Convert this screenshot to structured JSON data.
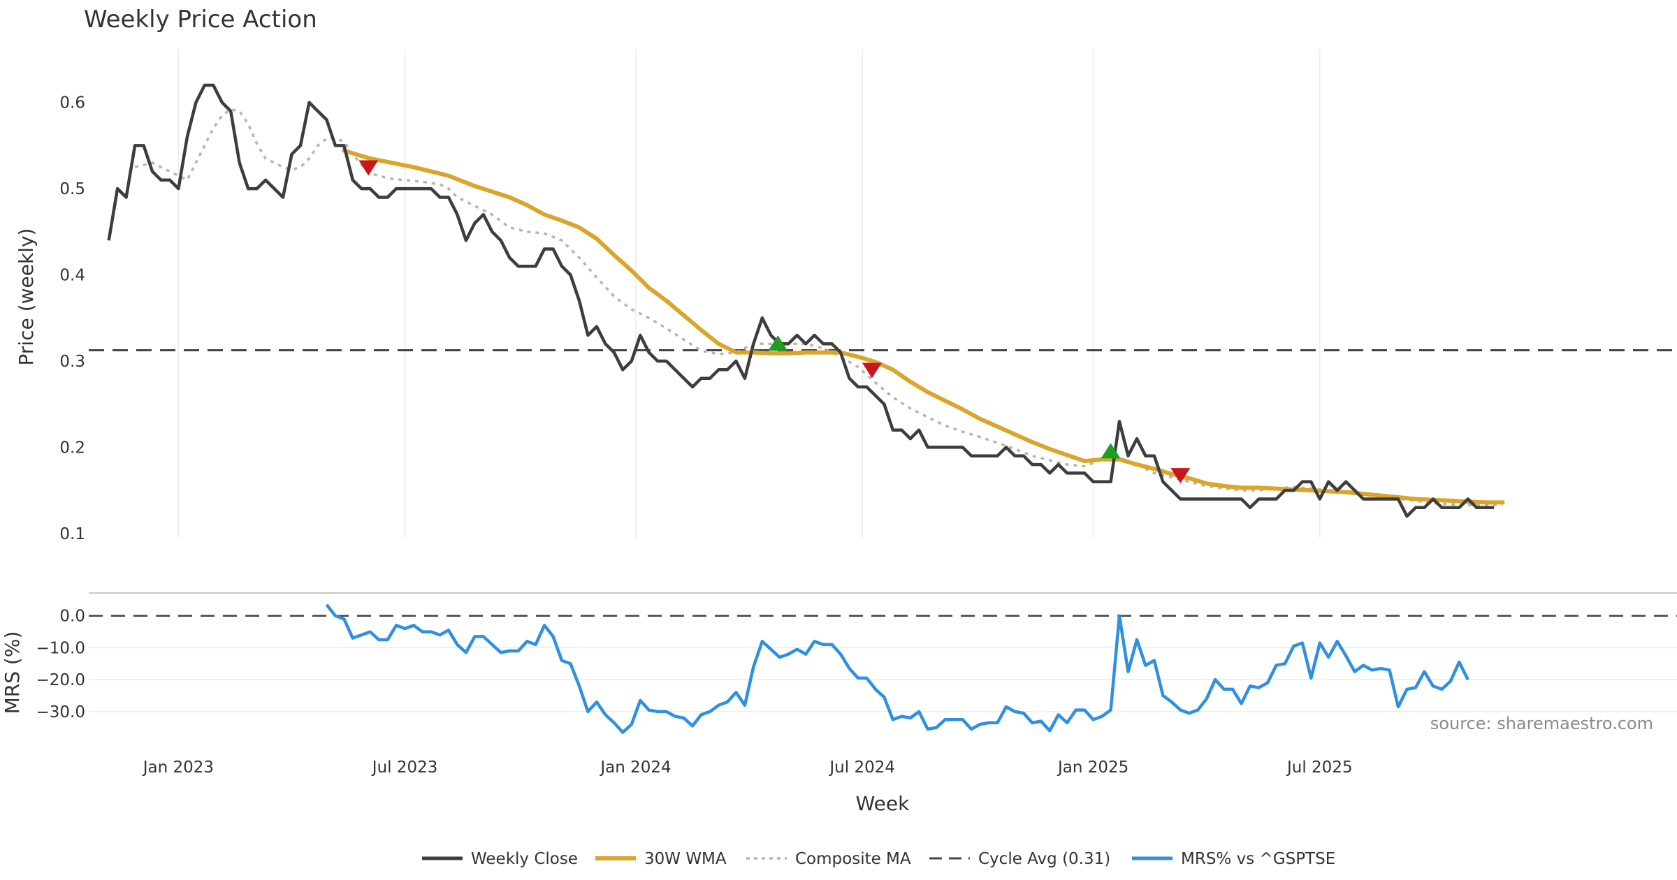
{
  "chart_data": {
    "type": "line",
    "title": "Weekly Price Action",
    "xlabel": "Week",
    "source": "source: sharemaestro.com",
    "colors": {
      "close": "#3d3d3d",
      "wma": "#d9a62b",
      "composite": "#b5b5b5",
      "cycle": "#444444",
      "mrs": "#2f8fe0",
      "sell": "#c8161d",
      "buy": "#1e9e1e"
    },
    "x_axis": {
      "range": [
        -2.3,
        180
      ],
      "ticks": [
        {
          "pos": 8,
          "label": "Jan 2023"
        },
        {
          "pos": 34,
          "label": "Jul 2023"
        },
        {
          "pos": 60.5,
          "label": "Jan 2024"
        },
        {
          "pos": 86.5,
          "label": "Jul 2024"
        },
        {
          "pos": 113,
          "label": "Jan 2025"
        },
        {
          "pos": 139,
          "label": "Jul 2025"
        }
      ]
    },
    "price_panel": {
      "ylabel": "Price (weekly)",
      "ylim": [
        0.095,
        0.65
      ],
      "yticks": [
        {
          "value": 0.6,
          "label": "0.6"
        },
        {
          "value": 0.5,
          "label": "0.5"
        },
        {
          "value": 0.4,
          "label": "0.4"
        },
        {
          "value": 0.3,
          "label": "0.3"
        },
        {
          "value": 0.2,
          "label": "0.2"
        },
        {
          "value": 0.1,
          "label": "0.1"
        }
      ],
      "cycle_avg": 0.3125,
      "weekly_close": [
        0.44,
        0.5,
        0.49,
        0.55,
        0.55,
        0.52,
        0.51,
        0.51,
        0.5,
        0.56,
        0.6,
        0.62,
        0.62,
        0.6,
        0.59,
        0.53,
        0.5,
        0.5,
        0.51,
        0.5,
        0.49,
        0.54,
        0.55,
        0.6,
        0.59,
        0.58,
        0.55,
        0.55,
        0.51,
        0.5,
        0.5,
        0.49,
        0.49,
        0.5,
        0.5,
        0.5,
        0.5,
        0.5,
        0.49,
        0.49,
        0.47,
        0.44,
        0.46,
        0.47,
        0.45,
        0.44,
        0.42,
        0.41,
        0.41,
        0.41,
        0.43,
        0.43,
        0.41,
        0.4,
        0.37,
        0.33,
        0.34,
        0.32,
        0.31,
        0.29,
        0.3,
        0.33,
        0.31,
        0.3,
        0.3,
        0.29,
        0.28,
        0.27,
        0.28,
        0.28,
        0.29,
        0.29,
        0.3,
        0.28,
        0.32,
        0.35,
        0.33,
        0.32,
        0.32,
        0.33,
        0.32,
        0.33,
        0.32,
        0.32,
        0.31,
        0.28,
        0.27,
        0.27,
        0.26,
        0.25,
        0.22,
        0.22,
        0.21,
        0.22,
        0.2,
        0.2,
        0.2,
        0.2,
        0.2,
        0.19,
        0.19,
        0.19,
        0.19,
        0.2,
        0.19,
        0.19,
        0.18,
        0.18,
        0.17,
        0.18,
        0.17,
        0.17,
        0.17,
        0.16,
        0.16,
        0.16,
        0.23,
        0.19,
        0.21,
        0.19,
        0.19,
        0.16,
        0.15,
        0.14,
        0.14,
        0.14,
        0.14,
        0.14,
        0.14,
        0.14,
        0.14,
        0.13,
        0.14,
        0.14,
        0.14,
        0.15,
        0.15,
        0.16,
        0.16,
        0.14,
        0.16,
        0.15,
        0.16,
        0.15,
        0.14,
        0.14,
        0.14,
        0.14,
        0.14,
        0.12,
        0.13,
        0.13,
        0.14,
        0.13,
        0.13,
        0.13,
        0.14,
        0.13,
        0.13,
        0.13
      ],
      "wma_30w": {
        "x": [
          27,
          30,
          35,
          39,
          42,
          46,
          48,
          50,
          52,
          54,
          56,
          58,
          60,
          62,
          64,
          66,
          68,
          70,
          72,
          74,
          76,
          78,
          80,
          82,
          84,
          86,
          88,
          90,
          92,
          94,
          96,
          98,
          100,
          102,
          104,
          106,
          108,
          110,
          112,
          114,
          116,
          118,
          120,
          122,
          124,
          126,
          128,
          130,
          132,
          134,
          136,
          138,
          140,
          142,
          144,
          146,
          148,
          150,
          152,
          154,
          156,
          158,
          160
        ],
        "y": [
          0.544,
          0.535,
          0.525,
          0.515,
          0.503,
          0.49,
          0.481,
          0.47,
          0.463,
          0.455,
          0.442,
          0.423,
          0.405,
          0.385,
          0.37,
          0.353,
          0.336,
          0.32,
          0.31,
          0.31,
          0.309,
          0.309,
          0.31,
          0.31,
          0.31,
          0.305,
          0.299,
          0.29,
          0.276,
          0.264,
          0.254,
          0.244,
          0.233,
          0.224,
          0.215,
          0.206,
          0.198,
          0.191,
          0.184,
          0.186,
          0.186,
          0.18,
          0.175,
          0.169,
          0.164,
          0.158,
          0.155,
          0.153,
          0.153,
          0.152,
          0.151,
          0.15,
          0.149,
          0.148,
          0.146,
          0.144,
          0.142,
          0.14,
          0.139,
          0.138,
          0.137,
          0.136,
          0.136
        ]
      },
      "composite_ma": {
        "x": [
          3,
          5,
          7,
          9,
          11,
          12,
          13,
          14,
          15,
          16,
          17,
          18,
          20,
          21,
          22,
          23,
          24,
          25,
          26,
          27,
          28,
          29,
          30,
          32,
          34,
          36,
          38,
          39,
          40,
          42,
          44,
          46,
          48,
          50,
          52,
          54,
          56,
          58,
          60,
          62,
          64,
          66,
          68,
          70,
          72,
          74,
          76,
          78,
          80,
          82,
          84,
          86,
          88,
          90,
          92,
          94,
          96,
          98,
          100,
          102,
          104,
          106,
          108,
          110,
          112,
          114,
          116,
          118,
          120,
          122,
          124,
          126,
          128,
          130,
          132,
          134,
          136,
          138,
          140,
          142,
          144,
          146,
          148,
          150,
          152,
          154,
          156,
          158,
          160
        ],
        "y": [
          0.525,
          0.53,
          0.52,
          0.51,
          0.55,
          0.57,
          0.585,
          0.592,
          0.59,
          0.575,
          0.552,
          0.535,
          0.525,
          0.522,
          0.525,
          0.535,
          0.55,
          0.558,
          0.558,
          0.555,
          0.54,
          0.528,
          0.518,
          0.512,
          0.51,
          0.508,
          0.505,
          0.5,
          0.49,
          0.48,
          0.47,
          0.455,
          0.45,
          0.448,
          0.44,
          0.42,
          0.397,
          0.375,
          0.36,
          0.35,
          0.338,
          0.325,
          0.312,
          0.308,
          0.31,
          0.32,
          0.32,
          0.32,
          0.32,
          0.315,
          0.305,
          0.293,
          0.275,
          0.258,
          0.245,
          0.235,
          0.225,
          0.218,
          0.212,
          0.205,
          0.198,
          0.19,
          0.185,
          0.18,
          0.178,
          0.186,
          0.188,
          0.18,
          0.17,
          0.165,
          0.16,
          0.155,
          0.152,
          0.15,
          0.15,
          0.152,
          0.154,
          0.152,
          0.15,
          0.148,
          0.145,
          0.142,
          0.14,
          0.138,
          0.135,
          0.134,
          0.133,
          0.133,
          0.133
        ]
      },
      "sell_signals": [
        {
          "x": 29.8,
          "y": 0.524
        },
        {
          "x": 87.6,
          "y": 0.289
        },
        {
          "x": 123,
          "y": 0.167
        }
      ],
      "buy_signals": [
        {
          "x": 76.8,
          "y": 0.321
        },
        {
          "x": 115,
          "y": 0.196
        }
      ]
    },
    "mrs_panel": {
      "ylabel": "MRS (%)",
      "ylim": [
        -39,
        6.5
      ],
      "yticks": [
        {
          "value": 0,
          "label": "0.0"
        },
        {
          "value": -10,
          "label": "−10.0"
        },
        {
          "value": -20,
          "label": "−20.0"
        },
        {
          "value": -30,
          "label": "−30.0"
        }
      ],
      "x_start": 25,
      "values": [
        3.5,
        0,
        -1,
        -7,
        -6,
        -5,
        -7.5,
        -7.5,
        -3,
        -4,
        -3,
        -5,
        -5,
        -6,
        -4.5,
        -9,
        -11.5,
        -6.5,
        -6.5,
        -9,
        -11.5,
        -11,
        -11,
        -8,
        -9,
        -3,
        -6.5,
        -14,
        -15,
        -22,
        -30,
        -27,
        -31,
        -33.5,
        -36.5,
        -34,
        -26.5,
        -29.5,
        -30,
        -30,
        -31.5,
        -32,
        -34.5,
        -31,
        -30,
        -28,
        -27,
        -24,
        -28,
        -16,
        -8,
        -10.5,
        -13,
        -12,
        -10.5,
        -12,
        -8,
        -9,
        -9,
        -12,
        -16.5,
        -19.5,
        -19.5,
        -23,
        -25.5,
        -32.5,
        -31.5,
        -32,
        -30,
        -35.5,
        -35,
        -32.5,
        -32.5,
        -32.5,
        -35.5,
        -34,
        -33.5,
        -33.5,
        -28.5,
        -30,
        -30.5,
        -33.5,
        -33,
        -36,
        -31,
        -33.5,
        -29.5,
        -29.5,
        -32.5,
        -31.5,
        -29.5,
        0,
        -17.5,
        -7.5,
        -15.5,
        -14,
        -25,
        -27,
        -29.5,
        -30.5,
        -29.5,
        -26,
        -20,
        -23,
        -23,
        -27.5,
        -22,
        -22.5,
        -21,
        -15.5,
        -15,
        -9.5,
        -8.5,
        -19.5,
        -8.5,
        -13,
        -8,
        -12.5,
        -17.5,
        -15.5,
        -17,
        -16.5,
        -17,
        -28.5,
        -23,
        -22.5,
        -17.5,
        -22,
        -23,
        -20.5,
        -14.5,
        -20
      ]
    },
    "legend": [
      {
        "key": "close",
        "label": "Weekly Close"
      },
      {
        "key": "wma",
        "label": "30W WMA"
      },
      {
        "key": "composite",
        "label": "Composite MA"
      },
      {
        "key": "cycle",
        "label": "Cycle Avg (0.31)"
      },
      {
        "key": "mrs",
        "label": "MRS% vs ^GSPTSE"
      }
    ]
  }
}
